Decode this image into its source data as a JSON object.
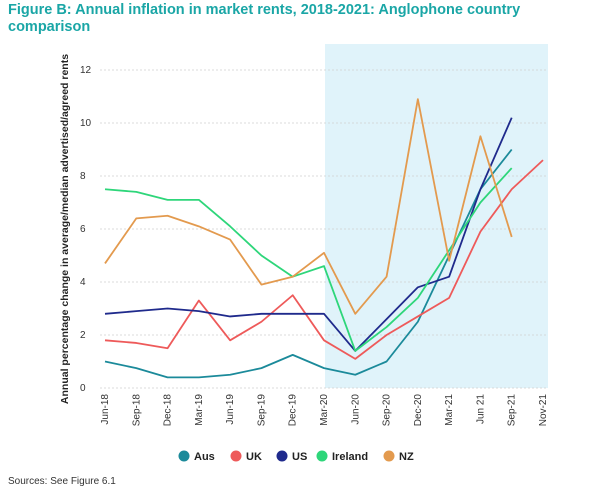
{
  "title": "Figure B: Annual inflation in market rents, 2018-2021: Anglophone country comparison",
  "source": "Sources: See Figure 6.1",
  "chart_data": {
    "type": "line",
    "title": "Figure B: Annual inflation in market rents, 2018-2021: Anglophone country comparison",
    "ylabel": "Annual percentage change in average/median advertised/agreed rents",
    "xlabel": "",
    "ylim": [
      0,
      12
    ],
    "yticks": [
      0,
      2,
      4,
      6,
      8,
      10,
      12
    ],
    "categories": [
      "Jun-18",
      "Sep-18",
      "Dec-18",
      "Mar-19",
      "Jun-19",
      "Sep-19",
      "Dec-19",
      "Mar-20",
      "Jun-20",
      "Sep-20",
      "Dec-20",
      "Mar-21",
      "Jun 21",
      "Sep-21",
      "Nov-21"
    ],
    "shaded_region": {
      "from": "Mar-20",
      "to": "Nov-21",
      "color": "#e0f3fa"
    },
    "grid": "horizontal",
    "legend_position": "bottom",
    "series": [
      {
        "name": "Aus",
        "color": "#1b8a9a",
        "values": [
          1.0,
          0.75,
          0.4,
          0.4,
          0.5,
          0.75,
          1.25,
          0.75,
          0.5,
          1.0,
          2.5,
          5.0,
          7.5,
          9.0,
          null
        ]
      },
      {
        "name": "UK",
        "color": "#ee5a5a",
        "values": [
          1.8,
          1.7,
          1.5,
          3.3,
          1.8,
          2.5,
          3.5,
          1.8,
          1.1,
          2.0,
          2.7,
          3.4,
          5.9,
          7.5,
          8.6
        ]
      },
      {
        "name": "US",
        "color": "#1f2a8c",
        "values": [
          2.8,
          2.9,
          3.0,
          2.9,
          2.7,
          2.8,
          2.8,
          2.8,
          1.4,
          2.6,
          3.8,
          4.2,
          7.5,
          10.2,
          null
        ]
      },
      {
        "name": "Ireland",
        "color": "#2ed67a",
        "values": [
          7.5,
          7.4,
          7.1,
          7.1,
          6.1,
          5.0,
          4.2,
          4.6,
          1.4,
          2.3,
          3.4,
          5.2,
          7.0,
          8.3,
          null
        ]
      },
      {
        "name": "NZ",
        "color": "#e39a4e",
        "values": [
          4.7,
          6.4,
          6.5,
          6.1,
          5.6,
          3.9,
          4.2,
          5.1,
          2.8,
          4.2,
          10.9,
          4.8,
          9.5,
          5.7,
          null
        ]
      }
    ]
  }
}
